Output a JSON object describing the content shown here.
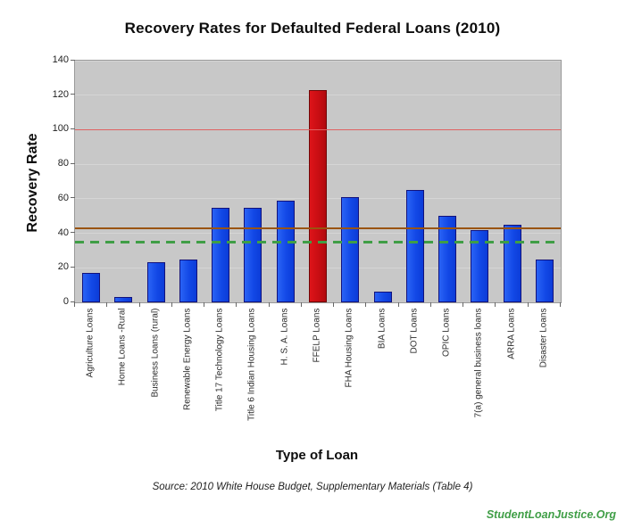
{
  "page": {
    "source_note": "Source: 2010 White House Budget, Supplementary Materials (Table 4)",
    "watermark": "StudentLoanJustice.Org"
  },
  "chart_data": {
    "type": "bar",
    "title": "Recovery Rates for Defaulted Federal Loans (2010)",
    "xlabel": "Type of Loan",
    "ylabel": "Recovery Rate",
    "ylim": [
      0,
      140
    ],
    "yticks": [
      0,
      20,
      40,
      60,
      80,
      100,
      120,
      140
    ],
    "grid": true,
    "legend": "none",
    "plot_background": "#c8c8c8",
    "categories": [
      "Agriculture Loans",
      "Home Loans -Rural",
      "Business Loans (rural)",
      "Renewable Energy Loans",
      "Title 17 Technology Loans",
      "Title 6 Indian Housing Loans",
      "H. S. A.  Loans",
      "FFELP Loans",
      "FHA Housing Loans",
      "BIA Loans",
      "DOT Loans",
      "OPIC Loans",
      "7(a) general business loans",
      "ARRA Loans",
      "Disaster Loans"
    ],
    "values": [
      17,
      3,
      23,
      25,
      55,
      55,
      59,
      123,
      61,
      6,
      65,
      50,
      42,
      45,
      25
    ],
    "bar_color_default": "#1248e6",
    "bar_color_highlight": "#c60d12",
    "highlight_index": 7,
    "reference_lines": [
      {
        "name": "red-100-line",
        "value": 100,
        "color": "#e06262",
        "style": "solid",
        "thickness": 1.5
      },
      {
        "name": "brown-mean-line",
        "value": 43,
        "color": "#9a5410",
        "style": "solid",
        "thickness": 2
      },
      {
        "name": "green-dashed-line",
        "value": 35,
        "color": "#3f9e46",
        "style": "dashed",
        "thickness": 3
      }
    ]
  }
}
